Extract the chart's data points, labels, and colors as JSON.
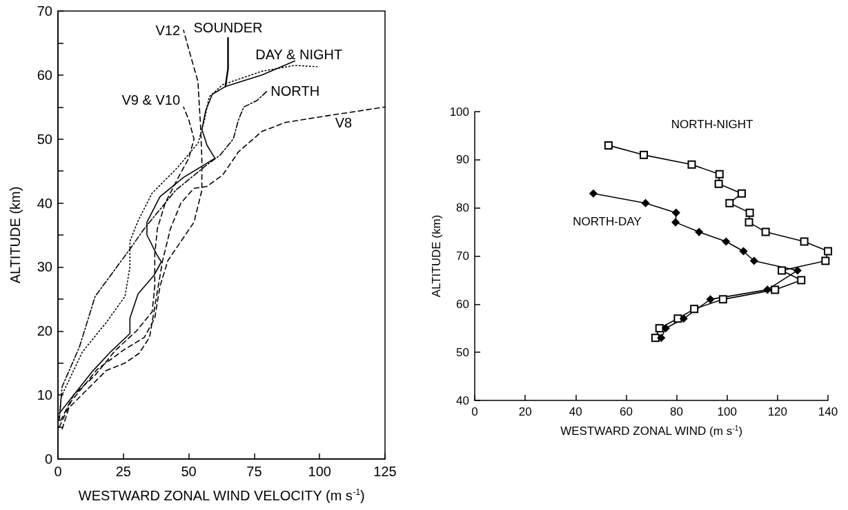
{
  "chart_data": [
    {
      "type": "line",
      "xlabel": "WESTWARD ZONAL WIND VELOCITY (m s$^{-1}$)",
      "ylabel": "ALTITUDE (km)",
      "xlim": [
        0,
        125
      ],
      "ylim": [
        0,
        70
      ],
      "xticks": [
        0,
        25,
        50,
        75,
        100,
        125
      ],
      "yticks": [
        0,
        {
          "value": 5,
          "label": null
        },
        10,
        {
          "value": 15,
          "label": null
        },
        20,
        {
          "value": 25,
          "label": null
        },
        30,
        {
          "value": 35,
          "label": null
        },
        40,
        {
          "value": 45,
          "label": null
        },
        50,
        {
          "value": 55,
          "label": null
        },
        60,
        {
          "value": 65,
          "label": null
        },
        70
      ],
      "marker": "none",
      "series": [
        {
          "color": "#000000",
          "line_style": "solid",
          "x": [
            0.6,
            6,
            13.4,
            20,
            27.5,
            27.5,
            30.6,
            36.7,
            39.5,
            37.7,
            34,
            34,
            39,
            48,
            60,
            57,
            55,
            56.5,
            59,
            64,
            78,
            90.5
          ],
          "values": [
            7.2,
            10,
            13.8,
            16.7,
            19.6,
            22,
            25.8,
            28.7,
            30.8,
            32,
            35,
            37,
            41,
            44,
            47,
            49,
            51.5,
            54.5,
            57,
            58.2,
            60,
            62.2
          ]
        },
        {
          "name": "SOUNDER",
          "color": "#000000",
          "line_style": "solid",
          "x": [
            64,
            65,
            65
          ],
          "values": [
            58.2,
            61,
            65.8
          ]
        },
        {
          "name": "DAY & NIGHT",
          "color": "#000000",
          "line_style": "dotted",
          "x": [
            0.5,
            1.2,
            9.3,
            18.4,
            25.6,
            27.5,
            27.5,
            30.6,
            35.9,
            45.6,
            53.6,
            56,
            57.8,
            63,
            78,
            90.5,
            99
          ],
          "values": [
            6.5,
            9.7,
            16.7,
            21.3,
            25.4,
            30,
            34,
            37.2,
            41.5,
            45.5,
            49.4,
            53,
            56.6,
            58.5,
            60.6,
            61.5,
            61.3
          ]
        },
        {
          "name": "NORTH",
          "color": "#000000",
          "line_style": "dashdot",
          "x": [
            0.5,
            1.6,
            8.2,
            14.2,
            27.5,
            33,
            45,
            57,
            62,
            67,
            69,
            71,
            76,
            80
          ],
          "values": [
            6,
            11.3,
            17.5,
            25.4,
            32.8,
            36,
            42,
            46,
            47.5,
            50,
            53,
            55,
            56,
            57.5
          ]
        },
        {
          "name": "V8",
          "color": "#000000",
          "line_style": "dashed",
          "x": [
            1.6,
            4.2,
            10.3,
            18.4,
            25.6,
            31,
            35,
            37.5,
            40,
            43,
            47,
            52,
            57,
            63,
            69,
            78,
            87,
            104,
            125
          ],
          "values": [
            4.7,
            8,
            10.5,
            13.8,
            15,
            16.5,
            19,
            25,
            31,
            36,
            40,
            42.3,
            42.6,
            44.4,
            48,
            51.2,
            52.6,
            53.7,
            55
          ]
        },
        {
          "name": "V9 & V10",
          "color": "#000000",
          "line_style": "dashed",
          "x": [
            1,
            6,
            14,
            22,
            30,
            36,
            37,
            37,
            38,
            41,
            46,
            50,
            52,
            50,
            48
          ],
          "values": [
            6,
            10,
            13,
            17,
            20,
            23,
            27,
            32,
            36,
            40,
            44,
            47,
            50,
            53,
            55
          ]
        },
        {
          "name": "V12",
          "color": "#000000",
          "line_style": "dashed",
          "x": [
            0.5,
            5,
            15,
            25,
            33,
            37,
            39,
            42,
            47,
            52,
            55,
            55,
            54.5,
            53.5,
            50,
            48
          ],
          "values": [
            5,
            9,
            14,
            17,
            19,
            22,
            27,
            31,
            34,
            37,
            42,
            47,
            52,
            59,
            64,
            67
          ]
        }
      ]
    },
    {
      "type": "line",
      "xlabel": "WESTWARD ZONAL WIND (m s$^{-1}$)",
      "ylabel": "ALTITUDE (km)",
      "xlim": [
        0,
        140
      ],
      "ylim": [
        40,
        100
      ],
      "xticks": [
        0,
        20,
        40,
        60,
        80,
        100,
        120,
        140
      ],
      "yticks": [
        40,
        50,
        60,
        70,
        80,
        90,
        100
      ],
      "series": [
        {
          "name": "NORTH-NIGHT",
          "color": "#000000",
          "marker": "square",
          "line_style": "solid",
          "x": [
            53,
            67,
            86,
            97,
            96.7,
            105.8,
            101,
            109,
            108.7,
            115.3,
            130.6,
            140,
            139,
            121.7,
            129.4,
            119,
            98.4,
            87,
            80.5,
            73.2,
            71.6
          ],
          "values": [
            93,
            91,
            89,
            87,
            85,
            83,
            81,
            79,
            77,
            75,
            73,
            71,
            69,
            67,
            65,
            63,
            61,
            59,
            57,
            55,
            53
          ]
        },
        {
          "name": "NORTH-DAY",
          "color": "#000000",
          "marker": "diamond",
          "line_style": "solid",
          "x": [
            47,
            67.7,
            79.8,
            79.6,
            88.9,
            99.6,
            106.5,
            110.7,
            127.9,
            116,
            93.4,
            82.8,
            75.7,
            73.9
          ],
          "values": [
            83,
            81,
            79,
            77,
            75,
            73,
            71,
            69,
            67,
            63,
            61,
            57,
            55,
            53
          ]
        }
      ]
    }
  ]
}
